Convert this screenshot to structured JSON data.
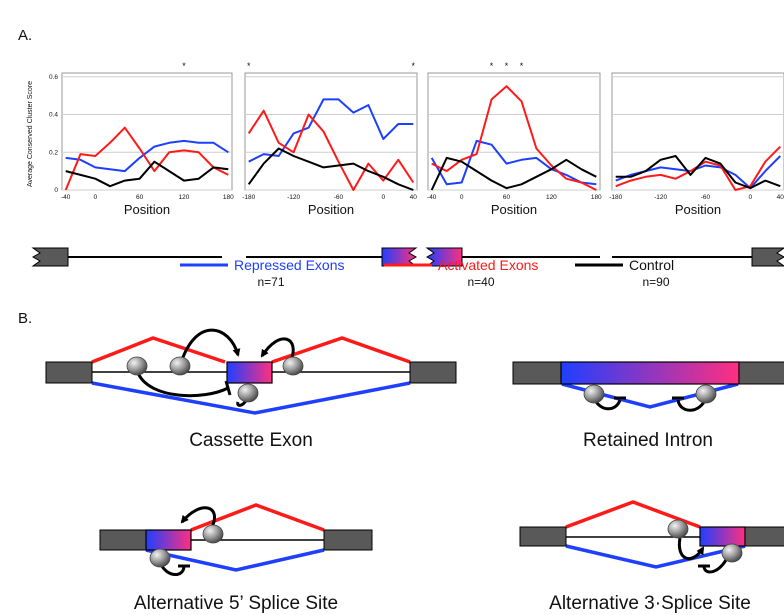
{
  "panel_a": {
    "label": "A.",
    "ylabel": "Average Conserved Cluster Score",
    "xlabel": "Position"
  },
  "panel_b": {
    "label": "B."
  },
  "legend": [
    {
      "name": "Repressed Exons",
      "count": "n=71",
      "color": "#1f3fff"
    },
    {
      "name": "Activated Exons",
      "count": "n=40",
      "color": "#ff1a1a"
    },
    {
      "name": "Control",
      "count": "n=90",
      "color": "#000000"
    }
  ],
  "colors": {
    "repressed": "#1f3fff",
    "activated": "#ff1a1a",
    "control": "#000000",
    "exon_grey": "#595959",
    "gradient_start": "#1f3fff",
    "gradient_end": "#ff2f80"
  },
  "chart_data": [
    {
      "type": "line",
      "x": [
        -40,
        -20,
        0,
        20,
        40,
        60,
        80,
        100,
        120,
        140,
        160,
        180
      ],
      "xticks": [
        "-40",
        "0",
        "60",
        "120",
        "180"
      ],
      "xtick_values": [
        -40,
        0,
        60,
        120,
        180
      ],
      "xlim": [
        -45,
        185
      ],
      "ylim": [
        0,
        0.62
      ],
      "yticks": [
        "0",
        "0.2",
        "0.4",
        "0.6"
      ],
      "ytick_values": [
        0,
        0.2,
        0.4,
        0.6
      ],
      "xlabel": "Position",
      "significance": [
        "*"
      ],
      "significance_x": [
        120
      ],
      "series": [
        {
          "name": "Repressed Exons",
          "values": [
            0.17,
            0.16,
            0.12,
            0.11,
            0.1,
            0.17,
            0.23,
            0.25,
            0.26,
            0.25,
            0.25,
            0.2
          ]
        },
        {
          "name": "Activated Exons",
          "values": [
            0.0,
            0.19,
            0.18,
            0.25,
            0.33,
            0.22,
            0.1,
            0.2,
            0.21,
            0.2,
            0.12,
            0.08
          ]
        },
        {
          "name": "Control",
          "values": [
            0.1,
            0.08,
            0.06,
            0.02,
            0.05,
            0.06,
            0.15,
            0.1,
            0.05,
            0.06,
            0.12,
            0.11
          ]
        }
      ]
    },
    {
      "type": "line",
      "x": [
        -180,
        -160,
        -140,
        -120,
        -100,
        -80,
        -60,
        -40,
        -20,
        0,
        20,
        40
      ],
      "xticks": [
        "-180",
        "-120",
        "-60",
        "0",
        "40"
      ],
      "xtick_values": [
        -180,
        -120,
        -60,
        0,
        40
      ],
      "xlim": [
        -185,
        45
      ],
      "ylim": [
        0,
        0.62
      ],
      "yticks": [
        "0",
        "0.2",
        "0.4",
        "0.6"
      ],
      "ytick_values": [
        0,
        0.2,
        0.4,
        0.6
      ],
      "xlabel": "Position",
      "significance": [
        "*",
        "*"
      ],
      "significance_x": [
        -180,
        40
      ],
      "series": [
        {
          "name": "Repressed Exons",
          "values": [
            0.15,
            0.19,
            0.18,
            0.3,
            0.33,
            0.48,
            0.48,
            0.41,
            0.45,
            0.27,
            0.35,
            0.35
          ]
        },
        {
          "name": "Activated Exons",
          "values": [
            0.3,
            0.42,
            0.25,
            0.2,
            0.4,
            0.31,
            0.15,
            0.0,
            0.14,
            0.05,
            0.16,
            0.04
          ]
        },
        {
          "name": "Control",
          "values": [
            0.03,
            0.14,
            0.22,
            0.18,
            0.15,
            0.12,
            0.13,
            0.14,
            0.1,
            0.07,
            0.03,
            0.0
          ]
        }
      ]
    },
    {
      "type": "line",
      "x": [
        -40,
        -20,
        0,
        20,
        40,
        60,
        80,
        100,
        120,
        140,
        160,
        180
      ],
      "xticks": [
        "-40",
        "0",
        "60",
        "120",
        "180"
      ],
      "xtick_values": [
        -40,
        0,
        60,
        120,
        180
      ],
      "xlim": [
        -45,
        185
      ],
      "ylim": [
        0,
        0.62
      ],
      "yticks": [
        "0",
        "0.2",
        "0.4",
        "0.6"
      ],
      "ytick_values": [
        0,
        0.2,
        0.4,
        0.6
      ],
      "xlabel": "Position",
      "significance": [
        "*",
        "*",
        "*"
      ],
      "significance_x": [
        40,
        60,
        80
      ],
      "series": [
        {
          "name": "Repressed Exons",
          "values": [
            0.17,
            0.03,
            0.04,
            0.26,
            0.24,
            0.14,
            0.16,
            0.17,
            0.11,
            0.08,
            0.04,
            0.03
          ]
        },
        {
          "name": "Activated Exons",
          "values": [
            0.14,
            0.1,
            0.16,
            0.19,
            0.48,
            0.55,
            0.47,
            0.22,
            0.13,
            0.06,
            0.04,
            0.0
          ]
        },
        {
          "name": "Control",
          "values": [
            0.0,
            0.17,
            0.15,
            0.1,
            0.05,
            0.01,
            0.03,
            0.07,
            0.11,
            0.16,
            0.11,
            0.07
          ]
        }
      ]
    },
    {
      "type": "line",
      "x": [
        -180,
        -160,
        -140,
        -120,
        -100,
        -80,
        -60,
        -40,
        -20,
        0,
        20,
        40
      ],
      "xticks": [
        "-180",
        "-120",
        "-60",
        "0",
        "40"
      ],
      "xtick_values": [
        -180,
        -120,
        -60,
        0,
        40
      ],
      "xlim": [
        -185,
        45
      ],
      "ylim": [
        0,
        0.62
      ],
      "yticks": [
        "0",
        "0.2",
        "0.4",
        "0.6"
      ],
      "ytick_values": [
        0,
        0.2,
        0.4,
        0.6
      ],
      "xlabel": "Position",
      "significance": [],
      "significance_x": [],
      "series": [
        {
          "name": "Repressed Exons",
          "values": [
            0.05,
            0.08,
            0.1,
            0.12,
            0.11,
            0.1,
            0.13,
            0.12,
            0.08,
            0.01,
            0.1,
            0.18
          ]
        },
        {
          "name": "Activated Exons",
          "values": [
            0.02,
            0.05,
            0.07,
            0.08,
            0.06,
            0.1,
            0.15,
            0.13,
            0.0,
            0.02,
            0.15,
            0.23
          ]
        },
        {
          "name": "Control",
          "values": [
            0.07,
            0.07,
            0.1,
            0.16,
            0.18,
            0.08,
            0.17,
            0.14,
            0.04,
            0.01,
            0.05,
            0.02
          ]
        }
      ]
    }
  ],
  "diagrams": [
    {
      "title": "Cassette Exon"
    },
    {
      "title": "Retained Intron"
    },
    {
      "title": "Alternative 5’ Splice Site"
    },
    {
      "title": "Alternative 3·Splice Site"
    }
  ]
}
